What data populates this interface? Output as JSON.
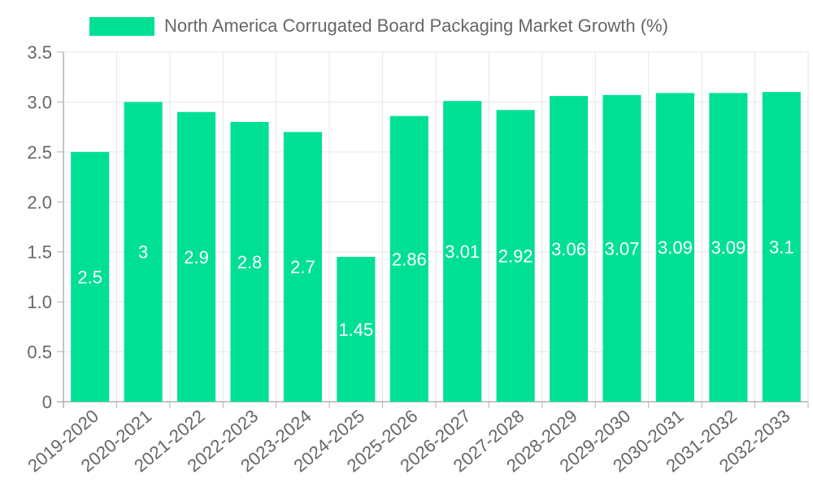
{
  "chart_data": {
    "type": "bar",
    "title": "",
    "xlabel": "",
    "ylabel": "",
    "legend": {
      "position": "top-center",
      "entries": [
        {
          "label": "North America Corrugated Board Packaging Market Growth (%)",
          "color": "#00e094"
        }
      ]
    },
    "categories": [
      "2019-2020",
      "2020-2021",
      "2021-2022",
      "2022-2023",
      "2023-2024",
      "2024-2025",
      "2025-2026",
      "2026-2027",
      "2027-2028",
      "2028-2029",
      "2029-2030",
      "2030-2031",
      "2031-2032",
      "2032-2033"
    ],
    "series": [
      {
        "name": "North America Corrugated Board Packaging Market Growth (%)",
        "values": [
          2.5,
          3,
          2.9,
          2.8,
          2.7,
          1.45,
          2.86,
          3.01,
          2.92,
          3.06,
          3.07,
          3.09,
          3.09,
          3.1
        ],
        "labels": [
          "2.5",
          "3",
          "2.9",
          "2.8",
          "2.7",
          "1.45",
          "2.86",
          "3.01",
          "2.92",
          "3.06",
          "3.07",
          "3.09",
          "3.09",
          "3.1"
        ]
      }
    ],
    "ylim": [
      0,
      3.5
    ],
    "yticks": [
      "0",
      "0.5",
      "1.0",
      "1.5",
      "2.0",
      "2.5",
      "3.0",
      "3.5"
    ],
    "grid": true,
    "colors": {
      "bar": "#00e094",
      "grid": "#e6e6e6",
      "axis": "#b3b3b3",
      "tick_text": "#666666",
      "label_text": "#ffffff",
      "legend_text": "#666666"
    }
  }
}
